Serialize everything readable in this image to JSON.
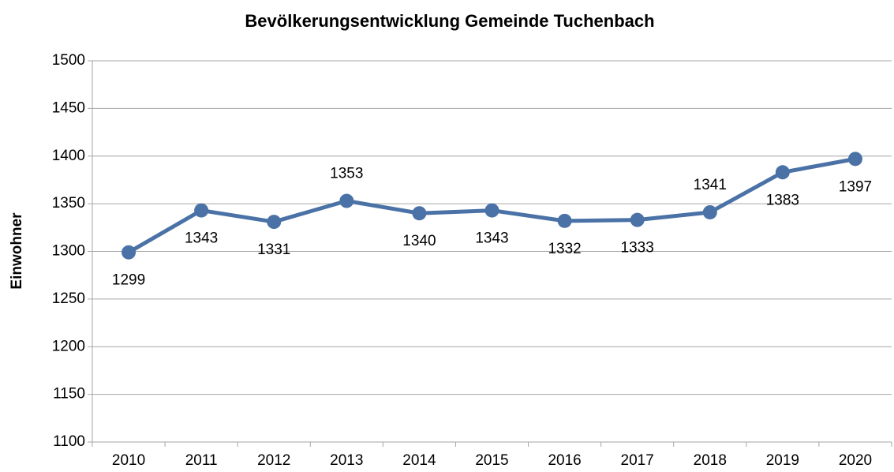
{
  "chart_data": {
    "type": "line",
    "title": "Bevölkerungsentwicklung Gemeinde Tuchenbach",
    "y_label": "Einwohner",
    "categories": [
      "2010",
      "2011",
      "2012",
      "2013",
      "2014",
      "2015",
      "2016",
      "2017",
      "2018",
      "2019",
      "2020"
    ],
    "series": [
      {
        "name": "Einwohner",
        "color": "#4a72a6",
        "values": [
          1299,
          1343,
          1331,
          1353,
          1340,
          1343,
          1332,
          1333,
          1341,
          1383,
          1397
        ]
      }
    ],
    "ylim": [
      1100,
      1500
    ],
    "yticks": [
      1100,
      1150,
      1200,
      1250,
      1300,
      1350,
      1400,
      1450,
      1500
    ],
    "grid": true
  }
}
